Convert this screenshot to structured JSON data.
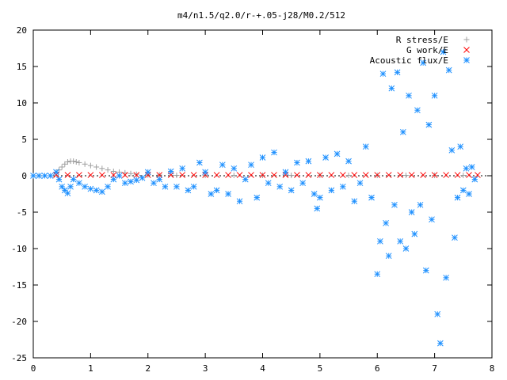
{
  "chart_data": {
    "type": "scatter",
    "title": "m4/n1.5/q2.0/r-+.05-j28/M0.2/512",
    "xlim": [
      0,
      8
    ],
    "ylim": [
      -25,
      20
    ],
    "x_ticks": [
      0,
      1,
      2,
      3,
      4,
      5,
      6,
      7,
      8
    ],
    "y_ticks": [
      -25,
      -20,
      -15,
      -10,
      -5,
      0,
      5,
      10,
      15,
      20
    ],
    "x_tick_labels": [
      "0",
      "1",
      "2",
      "3",
      "4",
      "5",
      "6",
      "7",
      "8"
    ],
    "y_tick_labels": [
      "-25",
      "-20",
      "-15",
      "-10",
      "-5",
      "0",
      "5",
      "10",
      "15",
      "20"
    ],
    "legend_position": "top-right",
    "grid": false,
    "series": [
      {
        "name": "R stress/E",
        "marker": "plus",
        "color": "#a0a0a0",
        "x": [
          0.4,
          0.45,
          0.5,
          0.55,
          0.6,
          0.65,
          0.7,
          0.75,
          0.8,
          0.9,
          1.0,
          1.1,
          1.2,
          1.3,
          1.4,
          1.5,
          1.6,
          1.7,
          1.8,
          2.0,
          2.2,
          2.5,
          3.0,
          3.5,
          4.0,
          4.5,
          5.0,
          5.5,
          6.0,
          6.5,
          7.0,
          7.5
        ],
        "y": [
          0.4,
          0.8,
          1.2,
          1.6,
          1.9,
          2.0,
          2.0,
          1.9,
          1.8,
          1.6,
          1.4,
          1.2,
          1.0,
          0.8,
          0.6,
          0.5,
          0.4,
          0.3,
          0.2,
          0.1,
          0.1,
          0.05,
          0.05,
          0.05,
          0.05,
          0.05,
          0.05,
          0.05,
          0.05,
          0.05,
          0.05,
          0.05
        ]
      },
      {
        "name": "G work/E",
        "marker": "cross",
        "color": "#ff0000",
        "x": [
          0.4,
          0.6,
          0.8,
          1.0,
          1.2,
          1.4,
          1.6,
          1.8,
          2.0,
          2.2,
          2.4,
          2.6,
          2.8,
          3.0,
          3.2,
          3.4,
          3.6,
          3.8,
          4.0,
          4.2,
          4.4,
          4.6,
          4.8,
          5.0,
          5.2,
          5.4,
          5.6,
          5.8,
          6.0,
          6.2,
          6.4,
          6.6,
          6.8,
          7.0,
          7.2,
          7.4,
          7.6,
          7.75
        ],
        "y": [
          0.1,
          0.1,
          0.1,
          0.1,
          0.1,
          0.1,
          0.1,
          0.1,
          0.1,
          0.1,
          0.1,
          0.1,
          0.1,
          0.1,
          0.1,
          0.1,
          0.1,
          0.1,
          0.1,
          0.1,
          0.1,
          0.1,
          0.1,
          0.1,
          0.1,
          0.1,
          0.1,
          0.1,
          0.1,
          0.1,
          0.1,
          0.1,
          0.1,
          0.1,
          0.1,
          0.1,
          0.1,
          0.1
        ]
      },
      {
        "name": "Acoustic flux/E",
        "marker": "star",
        "color": "#1e90ff",
        "x": [
          0.0,
          0.1,
          0.2,
          0.3,
          0.4,
          0.45,
          0.5,
          0.55,
          0.6,
          0.65,
          0.7,
          0.8,
          0.9,
          1.0,
          1.1,
          1.2,
          1.3,
          1.4,
          1.5,
          1.6,
          1.7,
          1.8,
          1.9,
          2.0,
          2.1,
          2.2,
          2.3,
          2.4,
          2.5,
          2.6,
          2.7,
          2.8,
          2.9,
          3.0,
          3.1,
          3.2,
          3.3,
          3.4,
          3.5,
          3.6,
          3.7,
          3.8,
          3.9,
          4.0,
          4.1,
          4.2,
          4.3,
          4.4,
          4.5,
          4.6,
          4.7,
          4.8,
          4.9,
          4.95,
          5.0,
          5.1,
          5.2,
          5.3,
          5.4,
          5.5,
          5.6,
          5.7,
          5.8,
          5.9,
          6.0,
          6.05,
          6.1,
          6.15,
          6.2,
          6.25,
          6.3,
          6.35,
          6.4,
          6.45,
          6.5,
          6.55,
          6.6,
          6.65,
          6.7,
          6.75,
          6.8,
          6.85,
          6.9,
          6.95,
          7.0,
          7.05,
          7.1,
          7.15,
          7.2,
          7.25,
          7.3,
          7.35,
          7.4,
          7.45,
          7.5,
          7.55,
          7.6,
          7.65,
          7.7
        ],
        "y": [
          0.0,
          0.0,
          0.0,
          0.0,
          0.5,
          -0.5,
          -1.5,
          -2.0,
          -2.4,
          -1.5,
          -0.5,
          -1.0,
          -1.5,
          -1.8,
          -2.0,
          -2.2,
          -1.5,
          -0.5,
          0.0,
          -1.0,
          -0.8,
          -0.6,
          -0.3,
          0.5,
          -1.0,
          -0.5,
          -1.5,
          0.6,
          -1.5,
          1.0,
          -2.0,
          -1.5,
          1.8,
          0.5,
          -2.5,
          -2.0,
          1.5,
          -2.5,
          1.0,
          -3.5,
          -0.5,
          1.5,
          -3.0,
          2.5,
          -1.0,
          3.2,
          -1.5,
          0.5,
          -2.0,
          1.8,
          -1.0,
          2.0,
          -2.5,
          -4.5,
          -3.0,
          2.5,
          -2.0,
          3.0,
          -1.5,
          2.0,
          -3.5,
          -1.0,
          4.0,
          -3.0,
          -13.5,
          -9.0,
          14.0,
          -6.5,
          -11.0,
          12.0,
          -4.0,
          14.2,
          -9.0,
          6.0,
          -10.0,
          11.0,
          -5.0,
          -8.0,
          9.0,
          -4.0,
          15.5,
          -13.0,
          7.0,
          -6.0,
          11.0,
          -19.0,
          -23.0,
          17.0,
          -14.0,
          14.5,
          3.5,
          -8.5,
          -3.0,
          4.0,
          -2.0,
          1.0,
          -2.5,
          1.2,
          -0.5
        ]
      }
    ]
  }
}
